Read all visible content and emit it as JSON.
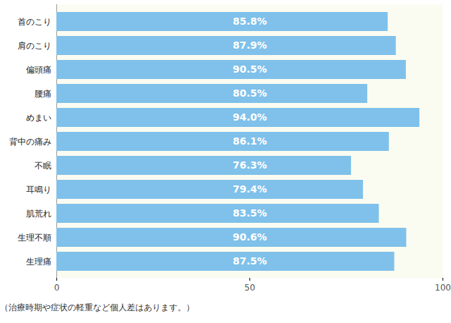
{
  "chart_data": {
    "type": "bar",
    "orientation": "horizontal",
    "caption": "（治療時期や症状の軽重など個人差はあります。）",
    "categories": [
      "首のこり",
      "肩のこり",
      "偏頭痛",
      "腰痛",
      "めまい",
      "背中の痛み",
      "不眠",
      "耳鳴り",
      "肌荒れ",
      "生理不順",
      "生理痛"
    ],
    "values": [
      85.8,
      87.9,
      90.5,
      80.5,
      94.0,
      86.1,
      76.3,
      79.4,
      83.5,
      90.6,
      87.5
    ],
    "value_labels": [
      "85.8%",
      "87.9%",
      "90.5%",
      "80.5%",
      "94.0%",
      "86.1%",
      "76.3%",
      "79.4%",
      "83.5%",
      "90.6%",
      "87.5%"
    ],
    "data_labels": true,
    "color": "#7fc1ea",
    "xlim": [
      0,
      100
    ],
    "xticks": [
      0,
      50,
      100
    ],
    "grid": false
  }
}
